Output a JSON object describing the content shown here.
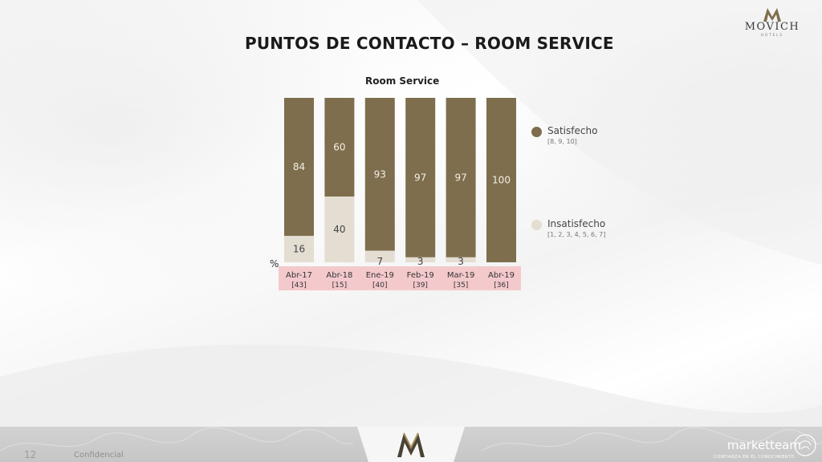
{
  "header": {
    "title": "PUNTOS DE CONTACTO – ROOM SERVICE",
    "logo": {
      "brand": "MOVICH",
      "sub": "HOTELS",
      "icon": "movich-logo-icon"
    }
  },
  "colors": {
    "satisfecho": "#7e6e4e",
    "insatisfecho": "#e4ddd2",
    "label_band": "#f4c9cc"
  },
  "legend": [
    {
      "label": "Satisfecho",
      "sub": "[8, 9, 10]"
    },
    {
      "label": "Insatisfecho",
      "sub": "[1, 2, 3, 4, 5, 6, 7]"
    }
  ],
  "chart_data": {
    "type": "bar",
    "stacked": true,
    "percent": true,
    "title": "Room Service",
    "unit_label": "%",
    "categories": [
      "Abr-17",
      "Abr-18",
      "Ene-19",
      "Feb-19",
      "Mar-19",
      "Abr-19"
    ],
    "bases": [
      "[43]",
      "[15]",
      "[40]",
      "[39]",
      "[35]",
      "[36]"
    ],
    "series": [
      {
        "name": "Satisfecho",
        "values": [
          84,
          60,
          93,
          97,
          97,
          100
        ]
      },
      {
        "name": "Insatisfecho",
        "values": [
          16,
          40,
          7,
          3,
          3,
          0
        ]
      }
    ],
    "ylim": [
      0,
      100
    ],
    "legend_position": "right"
  },
  "footer": {
    "page_number": "12",
    "confidential": "Confidencial",
    "center_icon": "movich-logo-icon",
    "right_brand": "marketteam",
    "right_sub": "CONFIANZA EN EL CONOCIMIENTO"
  }
}
